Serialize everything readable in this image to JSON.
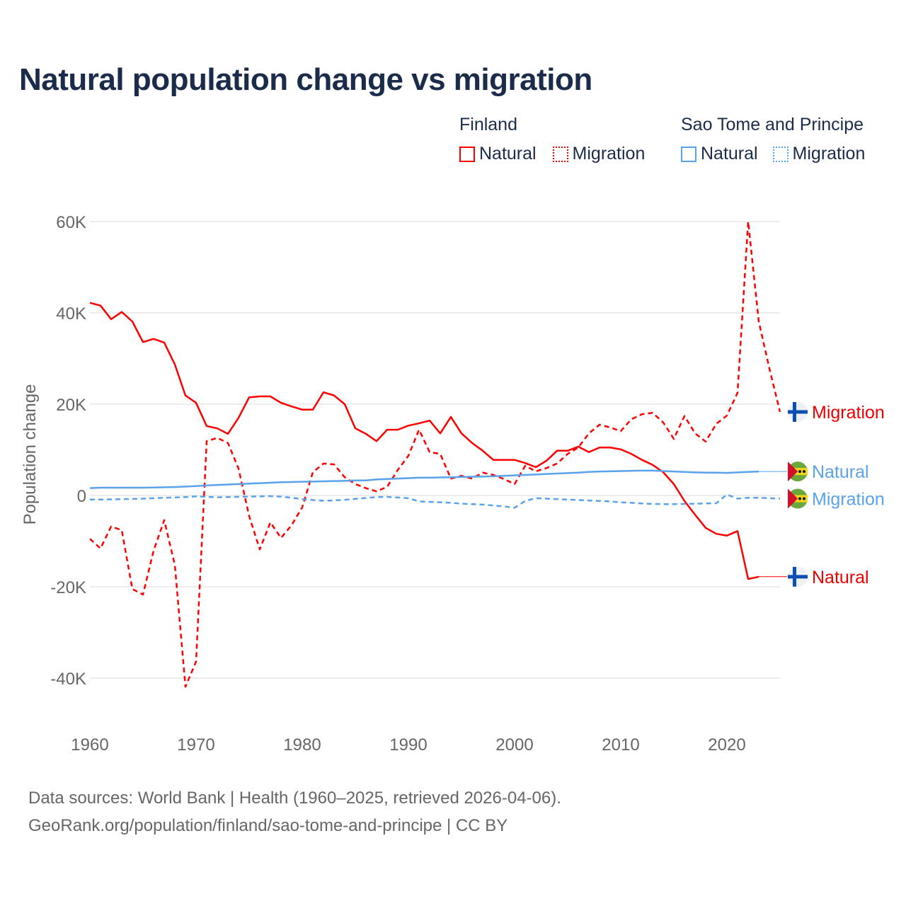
{
  "title": "Natural population change vs migration",
  "legend": {
    "groups": [
      {
        "title": "Finland",
        "items": [
          {
            "label": "Natural",
            "style": "solid"
          },
          {
            "label": "Migration",
            "style": "dotted"
          }
        ],
        "color": "#ff0000"
      },
      {
        "title": "Sao Tome and Principe",
        "items": [
          {
            "label": "Natural",
            "style": "solid"
          },
          {
            "label": "Migration",
            "style": "dotted"
          }
        ],
        "color": "#5aa2ec"
      }
    ]
  },
  "footer": {
    "line1": "Data sources: World Bank | Health (1960–2025, retrieved 2026-04-06).",
    "line2": "GeoRank.org/population/finland/sao-tome-and-principe | CC BY"
  },
  "chart_data": {
    "type": "line",
    "title": "Natural population change vs migration",
    "xlabel": "",
    "ylabel": "Population change",
    "xlim": [
      1960,
      2025
    ],
    "ylim": [
      -45000,
      62000
    ],
    "yticks": [
      {
        "v": 60000,
        "label": "60K"
      },
      {
        "v": 40000,
        "label": "40K"
      },
      {
        "v": 20000,
        "label": "20K"
      },
      {
        "v": 0,
        "label": "0"
      },
      {
        "v": -20000,
        "label": "-20K"
      },
      {
        "v": -40000,
        "label": "-40K"
      }
    ],
    "xticks": [
      {
        "v": 1960,
        "label": "1960"
      },
      {
        "v": 1970,
        "label": "1970"
      },
      {
        "v": 1980,
        "label": "1980"
      },
      {
        "v": 1990,
        "label": "1990"
      },
      {
        "v": 2000,
        "label": "2000"
      },
      {
        "v": 2010,
        "label": "2010"
      },
      {
        "v": 2020,
        "label": "2020"
      }
    ],
    "grid": true,
    "series": [
      {
        "name": "Finland Natural",
        "country": "Finland",
        "end_label": "Natural",
        "color": "#ff0000",
        "dash": false,
        "flag": "finland-flag",
        "start": 1960,
        "values": [
          42.2,
          41.6,
          38.6,
          40.2,
          38.1,
          33.6,
          34.3,
          33.5,
          28.7,
          21.9,
          20.3,
          15.2,
          14.7,
          13.5,
          17,
          21.5,
          21.7,
          21.7,
          20.3,
          19.5,
          18.8,
          18.8,
          22.6,
          21.9,
          20,
          14.7,
          13.5,
          11.9,
          14.4,
          14.4,
          15.3,
          15.8,
          16.4,
          13.6,
          17.2,
          13.6,
          11.5,
          9.8,
          7.8,
          7.8,
          7.8,
          7.1,
          6.2,
          7.6,
          9.8,
          9.8,
          10.7,
          9.5,
          10.5,
          10.5,
          10.1,
          9.1,
          7.8,
          6.7,
          5.1,
          2.5,
          -1.2,
          -4.2,
          -7.1,
          -8.4,
          -8.8,
          -7.8,
          -18.3,
          -17.8
        ]
      },
      {
        "name": "Finland Migration",
        "country": "Finland",
        "end_label": "Migration",
        "color": "#ff0000",
        "dash": true,
        "flag": "finland-flag",
        "start": 1960,
        "values": [
          -9.5,
          -11.6,
          -6.8,
          -7.6,
          -20.5,
          -21.7,
          -12.1,
          -5.4,
          -15.2,
          -41.9,
          -36.4,
          11.9,
          12.6,
          11.5,
          5.9,
          -4.5,
          -11.8,
          -5.9,
          -9.3,
          -6.5,
          -2.6,
          5.1,
          7,
          6.8,
          4,
          2.5,
          1.6,
          0.9,
          1.9,
          5.6,
          8.7,
          14.4,
          9.5,
          9.1,
          3.7,
          4.3,
          3.7,
          5,
          4.5,
          3.6,
          2.5,
          6.5,
          5.3,
          6,
          7,
          9.1,
          10.5,
          13.6,
          15.5,
          14.9,
          14.1,
          16.7,
          17.8,
          18.1,
          16,
          12.4,
          17.4,
          13.6,
          11.8,
          15.7,
          17.5,
          22.5,
          60,
          38.1,
          27.8,
          18.3
        ]
      },
      {
        "name": "Sao Tome and Principe Natural",
        "country": "Sao Tome and Principe",
        "end_label": "Natural",
        "color": "#5aa2ec",
        "dash": false,
        "flag": "sao-tome-flag",
        "start": 1960,
        "values": [
          1.6,
          1.7,
          1.7,
          1.7,
          1.7,
          1.7,
          1.75,
          1.8,
          1.85,
          1.95,
          2.05,
          2.2,
          2.3,
          2.4,
          2.5,
          2.6,
          2.7,
          2.8,
          2.9,
          2.95,
          3.0,
          3.05,
          3.1,
          3.15,
          3.2,
          3.3,
          3.3,
          3.5,
          3.6,
          3.7,
          3.8,
          3.9,
          3.9,
          3.95,
          4.0,
          4.05,
          4.1,
          4.15,
          4.2,
          4.3,
          4.4,
          4.5,
          4.6,
          4.7,
          4.8,
          4.9,
          5.0,
          5.15,
          5.25,
          5.3,
          5.35,
          5.4,
          5.45,
          5.45,
          5.35,
          5.25,
          5.15,
          5.05,
          5.0,
          5.0,
          4.95,
          5.05,
          5.15,
          5.25
        ]
      },
      {
        "name": "Sao Tome and Principe Migration",
        "country": "Sao Tome and Principe",
        "end_label": "Migration",
        "color": "#5aa2ec",
        "dash": true,
        "flag": "sao-tome-flag",
        "start": 1960,
        "values": [
          -0.9,
          -0.9,
          -0.85,
          -0.8,
          -0.75,
          -0.7,
          -0.6,
          -0.5,
          -0.45,
          -0.35,
          -0.2,
          -0.3,
          -0.4,
          -0.35,
          -0.3,
          -0.25,
          -0.2,
          -0.15,
          -0.25,
          -0.5,
          -0.8,
          -1.0,
          -1.15,
          -1.1,
          -0.95,
          -0.75,
          -0.55,
          -0.35,
          -0.3,
          -0.45,
          -0.6,
          -1.3,
          -1.4,
          -1.5,
          -1.6,
          -1.8,
          -1.9,
          -2.0,
          -2.2,
          -2.4,
          -2.7,
          -1.2,
          -0.6,
          -0.7,
          -0.8,
          -0.9,
          -1.0,
          -1.1,
          -1.2,
          -1.3,
          -1.5,
          -1.6,
          -1.75,
          -1.85,
          -1.9,
          -1.9,
          -1.85,
          -1.8,
          -1.75,
          -1.7,
          0.2,
          -0.7,
          -0.5,
          -0.5,
          -0.6,
          -0.7
        ]
      }
    ]
  }
}
